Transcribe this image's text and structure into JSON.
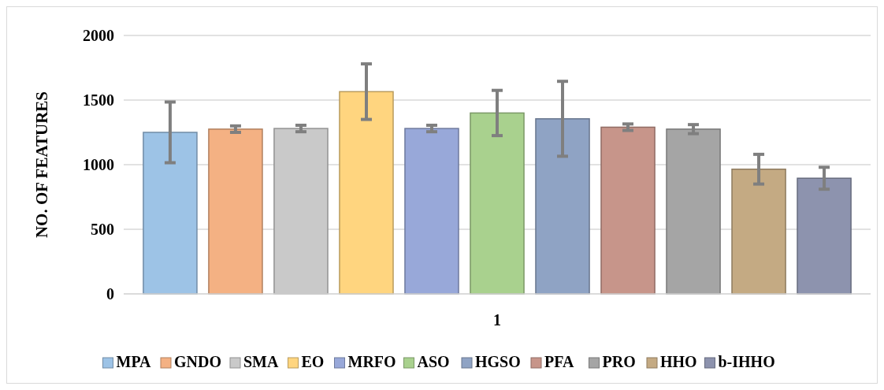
{
  "chart_data": {
    "type": "bar",
    "ylabel": "NO. OF FEATURES",
    "categories": [
      "1"
    ],
    "series": [
      {
        "name": "MPA",
        "color": "#9dc3e6",
        "values": [
          1250
        ],
        "errors": [
          235
        ]
      },
      {
        "name": "GNDO",
        "color": "#f4b183",
        "values": [
          1275
        ],
        "errors": [
          25
        ]
      },
      {
        "name": "SMA",
        "color": "#c9c9c9",
        "values": [
          1280
        ],
        "errors": [
          25
        ]
      },
      {
        "name": "EO",
        "color": "#ffd57f",
        "values": [
          1565
        ],
        "errors": [
          215
        ]
      },
      {
        "name": "MRFO",
        "color": "#98a8d9",
        "values": [
          1280
        ],
        "errors": [
          25
        ]
      },
      {
        "name": "ASO",
        "color": "#a9d18e",
        "values": [
          1400
        ],
        "errors": [
          175
        ]
      },
      {
        "name": "HGSO",
        "color": "#8fa3c4",
        "values": [
          1355
        ],
        "errors": [
          290
        ]
      },
      {
        "name": "PFA",
        "color": "#c7958a",
        "values": [
          1290
        ],
        "errors": [
          25
        ]
      },
      {
        "name": "PRO",
        "color": "#a5a5a5",
        "values": [
          1275
        ],
        "errors": [
          35
        ]
      },
      {
        "name": "HHO",
        "color": "#c4aa83",
        "values": [
          965
        ],
        "errors": [
          115
        ]
      },
      {
        "name": "b-IHHO",
        "color": "#8d93ae",
        "values": [
          895
        ],
        "errors": [
          85
        ]
      }
    ],
    "ylim": [
      0,
      2000
    ],
    "yticks": [
      0,
      500,
      1000,
      1500,
      2000
    ],
    "grid": "y",
    "legend": "bottom"
  }
}
